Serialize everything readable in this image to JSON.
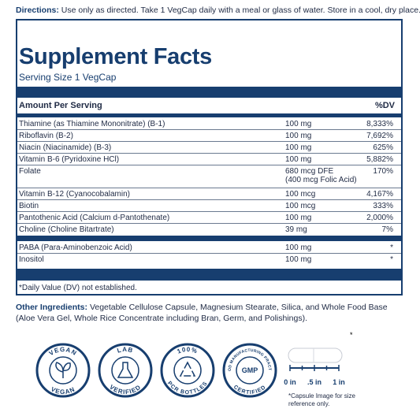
{
  "directions": {
    "label": "Directions:",
    "text": "Use only as directed. Take 1 VegCap daily with a meal or glass of water. Store in a cool, dry place."
  },
  "facts": {
    "title": "Supplement Facts",
    "serving": "Serving Size 1 VegCap",
    "header": {
      "amount": "Amount Per Serving",
      "dv": "%DV"
    },
    "rows": [
      {
        "name": "Thiamine (as Thiamine Mononitrate) (B-1)",
        "amount": "100 mg",
        "dv": "8,333%"
      },
      {
        "name": "Riboflavin (B-2)",
        "amount": "100 mg",
        "dv": "7,692%"
      },
      {
        "name": "Niacin (Niacinamide) (B-3)",
        "amount": "100 mg",
        "dv": "625%"
      },
      {
        "name": "Vitamin B-6 (Pyridoxine HCl)",
        "amount": "100 mg",
        "dv": "5,882%"
      },
      {
        "name": "Folate",
        "amount": "680 mcg DFE",
        "amount_note": "(400 mcg Folic Acid)",
        "dv": "170%"
      },
      {
        "name": "Vitamin B-12 (Cyanocobalamin)",
        "amount": "100 mcg",
        "dv": "4,167%"
      },
      {
        "name": "Biotin",
        "amount": "100 mcg",
        "dv": "333%"
      },
      {
        "name": "Pantothenic Acid (Calcium d-Pantothenate)",
        "amount": "100 mg",
        "dv": "2,000%"
      },
      {
        "name": "Choline (Choline Bitartrate)",
        "amount": "39 mg",
        "dv": "7%"
      }
    ],
    "rows2": [
      {
        "name": "PABA (Para-Aminobenzoic Acid)",
        "amount": "100 mg",
        "dv": "*"
      },
      {
        "name": "Inositol",
        "amount": "100 mg",
        "dv": "*"
      }
    ],
    "footnote": "*Daily Value (DV) not established."
  },
  "other": {
    "label": "Other Ingredients:",
    "text": "Vegetable Cellulose Capsule, Magnesium Stearate, Silica, and Whole Food Base (Aloe Vera Gel, Whole Rice Concentrate including Bran, Germ, and Polishings)."
  },
  "badges": [
    {
      "top": "VEGAN",
      "bottom": "VEGAN"
    },
    {
      "top": "LAB",
      "bottom": "VERIFIED"
    },
    {
      "top": "100%",
      "bottom": "PCR BOTTLES"
    },
    {
      "top": "GOOD MANUFACTURING PRACTICE",
      "center": "GMP",
      "bottom": "CERTIFIED"
    }
  ],
  "capsule": {
    "star": "*",
    "scale": [
      "0 in",
      ".5 in",
      "1 in"
    ],
    "note": "*Capsule Image for size reference only."
  }
}
